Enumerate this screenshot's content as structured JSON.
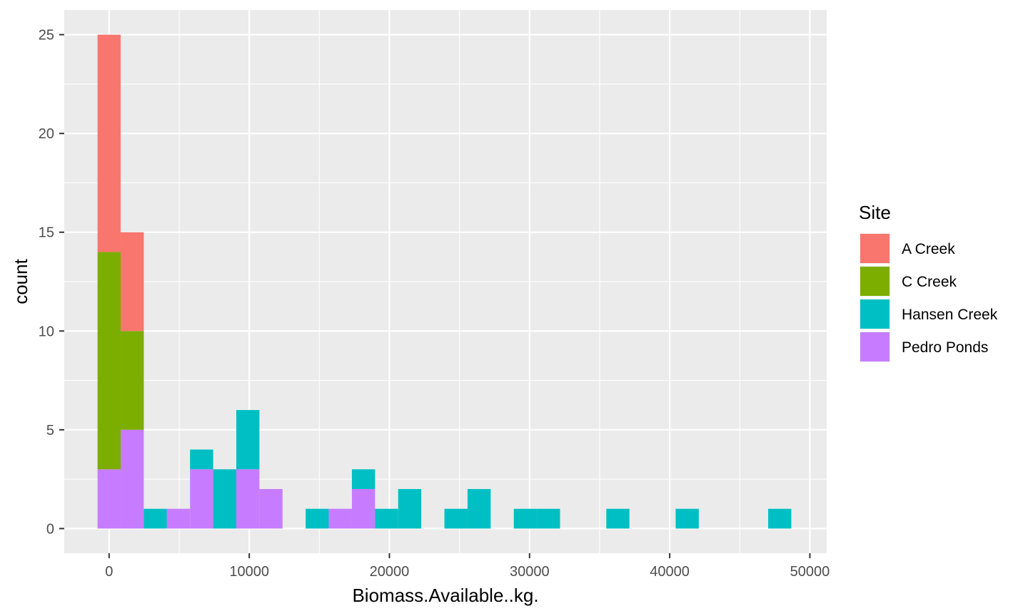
{
  "chart_data": {
    "type": "bar",
    "subtype": "stacked-histogram",
    "xlabel": "Biomass.Available..kg.",
    "ylabel": "count",
    "xlim": [
      -3200,
      51200
    ],
    "ylim": [
      -1.25,
      26.25
    ],
    "x_ticks": [
      0,
      10000,
      20000,
      30000,
      40000,
      50000
    ],
    "y_ticks": [
      0,
      5,
      10,
      15,
      20,
      25
    ],
    "x_tick_labels": [
      "0",
      "10000",
      "20000",
      "30000",
      "40000",
      "50000"
    ],
    "y_tick_labels": [
      "0",
      "5",
      "10",
      "15",
      "20",
      "25"
    ],
    "bin_width": 1650,
    "bin_centers": [
      0,
      1650,
      3300,
      4950,
      6600,
      8250,
      9900,
      11550,
      13200,
      14850,
      16500,
      18150,
      19800,
      21450,
      23100,
      24750,
      26400,
      28050,
      29700,
      31350,
      33000,
      34650,
      36300,
      37950,
      39600,
      41250,
      42900,
      44550,
      46200,
      47850
    ],
    "grid": true,
    "background": "#ebebeb",
    "legend": {
      "title": "Site",
      "position": "right"
    },
    "series": [
      {
        "name": "Pedro Ponds",
        "color": "#c77cff",
        "values": [
          3,
          5,
          0,
          1,
          3,
          0,
          3,
          2,
          0,
          0,
          1,
          2,
          0,
          0,
          0,
          0,
          0,
          0,
          0,
          0,
          0,
          0,
          0,
          0,
          0,
          0,
          0,
          0,
          0,
          0
        ]
      },
      {
        "name": "Hansen Creek",
        "color": "#00bfc4",
        "values": [
          0,
          0,
          1,
          0,
          1,
          3,
          3,
          0,
          0,
          1,
          0,
          1,
          1,
          2,
          0,
          1,
          2,
          0,
          1,
          1,
          0,
          0,
          1,
          0,
          0,
          1,
          0,
          0,
          0,
          1
        ]
      },
      {
        "name": "C Creek",
        "color": "#7cae00",
        "values": [
          11,
          5,
          0,
          0,
          0,
          0,
          0,
          0,
          0,
          0,
          0,
          0,
          0,
          0,
          0,
          0,
          0,
          0,
          0,
          0,
          0,
          0,
          0,
          0,
          0,
          0,
          0,
          0,
          0,
          0
        ]
      },
      {
        "name": "A Creek",
        "color": "#f8766d",
        "values": [
          11,
          5,
          0,
          0,
          0,
          0,
          0,
          0,
          0,
          0,
          0,
          0,
          0,
          0,
          0,
          0,
          0,
          0,
          0,
          0,
          0,
          0,
          0,
          0,
          0,
          0,
          0,
          0,
          0,
          0
        ]
      }
    ],
    "legend_order": [
      "A Creek",
      "C Creek",
      "Hansen Creek",
      "Pedro Ponds"
    ]
  }
}
